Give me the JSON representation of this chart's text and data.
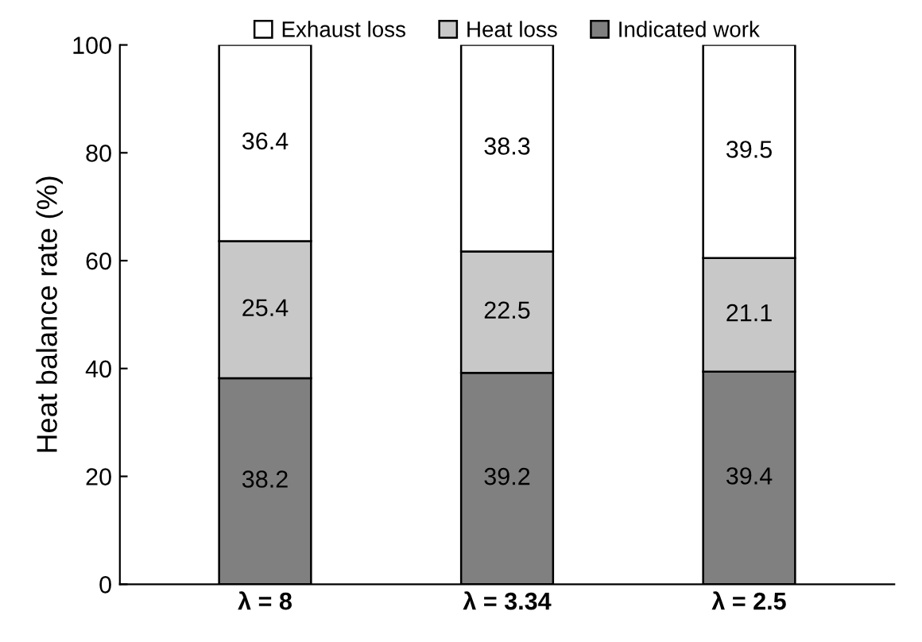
{
  "chart_data": {
    "type": "bar",
    "stacked": true,
    "ylabel": "Heat balance rate (%)",
    "categories": [
      "λ = 8",
      "λ = 3.34",
      "λ = 2.5"
    ],
    "series": [
      {
        "name": "Indicated work",
        "color": "#808080",
        "values": [
          38.2,
          39.2,
          39.4
        ]
      },
      {
        "name": "Heat loss",
        "color": "#c8c8c8",
        "values": [
          25.4,
          22.5,
          21.1
        ]
      },
      {
        "name": "Exhaust loss",
        "color": "#ffffff",
        "values": [
          36.4,
          38.3,
          39.5
        ]
      }
    ],
    "ylim": [
      0,
      100
    ],
    "yticks": [
      0,
      20,
      40,
      60,
      80,
      100
    ],
    "grid": false,
    "legend": "top",
    "data_labels": true
  }
}
